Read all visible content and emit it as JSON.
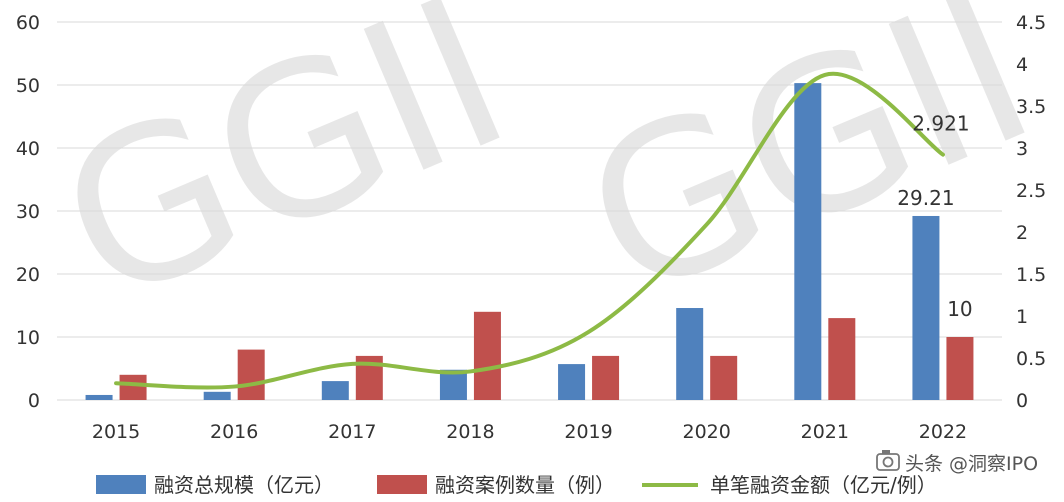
{
  "chart_data": {
    "type": "bar",
    "categories": [
      "2015",
      "2016",
      "2017",
      "2018",
      "2019",
      "2020",
      "2021",
      "2022"
    ],
    "series": [
      {
        "name": "融资总规模（亿元）",
        "kind": "bar",
        "axis": "left",
        "color": "#4f81bd",
        "values": [
          0.8,
          1.3,
          3.0,
          4.8,
          5.7,
          14.6,
          50.3,
          29.21
        ]
      },
      {
        "name": "融资案例数量（例）",
        "kind": "bar",
        "axis": "left",
        "color": "#c0504d",
        "values": [
          4,
          8,
          7,
          14,
          7,
          7,
          13,
          10
        ]
      },
      {
        "name": "单笔融资金额（亿元/例）",
        "kind": "line",
        "axis": "right",
        "color": "#8dba45",
        "values": [
          0.2,
          0.16,
          0.43,
          0.34,
          0.81,
          2.09,
          3.87,
          2.921
        ]
      }
    ],
    "left_axis": {
      "ylim": [
        0,
        60
      ],
      "ticks": [
        "0",
        "10",
        "20",
        "30",
        "40",
        "50",
        "60"
      ]
    },
    "right_axis": {
      "ylim": [
        0,
        4.5
      ],
      "ticks": [
        "0",
        "0.5",
        "1",
        "1.5",
        "2",
        "2.5",
        "3",
        "3.5",
        "4",
        "4.5"
      ]
    },
    "grid": true,
    "legend_position": "bottom",
    "data_labels": [
      {
        "series": 0,
        "index": 7,
        "text": "29.21"
      },
      {
        "series": 1,
        "index": 7,
        "text": "10"
      },
      {
        "series": 2,
        "index": 7,
        "text": "2.921"
      }
    ]
  },
  "watermark": "GGII",
  "branding": "头条 @洞察IPO",
  "brand_icon": "camera-icon"
}
